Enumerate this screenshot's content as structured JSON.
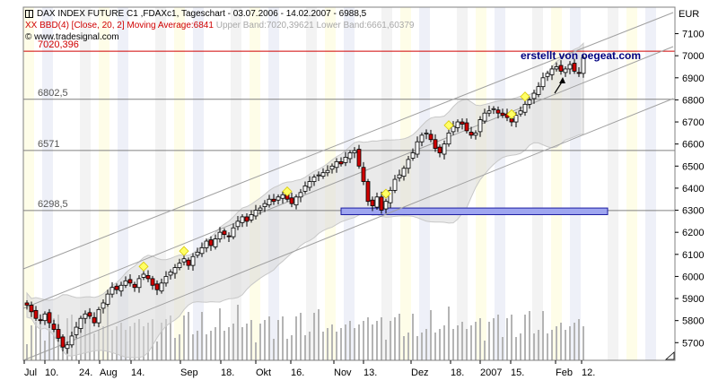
{
  "header": {
    "line1": "DAX INDEX FUTURE C1 ,FDAXc1, Tageschart - 03.07.2006 - 14.02.2007 - 6988,5",
    "line2_indicator": "XX BBD(4) [Close, 20, 2] Moving Average:6841",
    "line2_bands": "Upper Band:7020,39621 Lower Band:6661,60379",
    "line3": "© www.tradesignal.com"
  },
  "credit": "erstellt von oegeat.com",
  "currency": "EUR",
  "colors": {
    "up": "#ffffff",
    "down": "#d00000",
    "candle_outline": "#000000",
    "band_fill": "#d8d8d8",
    "channel_line": "#a0a0a0",
    "resistance_line": "#d00000",
    "support_box": "#9fa6f0",
    "support_box_border": "#1a1aa0",
    "volume": "#b4b4b4",
    "marker": "#ffff66"
  },
  "chart_data": {
    "type": "candlestick",
    "title": "DAX INDEX FUTURE C1 ,FDAXc1, Tageschart - 03.07.2006 - 14.02.2007 - 6988,5",
    "ylim": [
      5620,
      7220
    ],
    "y_ticks": [
      5700,
      5800,
      5900,
      6000,
      6100,
      6200,
      6300,
      6400,
      6500,
      6600,
      6700,
      6800,
      6900,
      7000,
      7100
    ],
    "x_tick_labels": [
      "Jul",
      "10.",
      "24.",
      "Aug",
      "14.",
      "Sep",
      "18.",
      "Okt",
      "16.",
      "Nov",
      "13.",
      "Dez",
      "18.",
      "2007",
      "15.",
      "Feb",
      "12."
    ],
    "levels": [
      {
        "label": "7020,396",
        "value": 7020.396
      },
      {
        "label": "6802,5",
        "value": 6802.5
      },
      {
        "label": "6571",
        "value": 6571
      },
      {
        "label": "6298,5",
        "value": 6298.5
      }
    ],
    "support_zone": [
      6280,
      6310
    ],
    "closes": [
      5870,
      5840,
      5810,
      5800,
      5830,
      5790,
      5760,
      5720,
      5680,
      5690,
      5730,
      5770,
      5810,
      5830,
      5820,
      5790,
      5850,
      5880,
      5920,
      5950,
      5940,
      5960,
      5980,
      5970,
      5950,
      5990,
      6010,
      5990,
      5960,
      5940,
      5970,
      6000,
      6020,
      6040,
      6060,
      6080,
      6050,
      6090,
      6110,
      6130,
      6160,
      6140,
      6170,
      6200,
      6190,
      6180,
      6220,
      6250,
      6270,
      6250,
      6280,
      6300,
      6310,
      6330,
      6350,
      6340,
      6360,
      6370,
      6350,
      6330,
      6360,
      6380,
      6410,
      6430,
      6450,
      6460,
      6470,
      6480,
      6500,
      6520,
      6510,
      6540,
      6560,
      6570,
      6500,
      6430,
      6340,
      6320,
      6360,
      6300,
      6340,
      6390,
      6440,
      6460,
      6490,
      6530,
      6560,
      6610,
      6640,
      6650,
      6620,
      6580,
      6560,
      6600,
      6650,
      6680,
      6700,
      6690,
      6660,
      6640,
      6650,
      6710,
      6740,
      6750,
      6760,
      6740,
      6730,
      6720,
      6700,
      6730,
      6750,
      6780,
      6800,
      6830,
      6860,
      6900,
      6920,
      6940,
      6950,
      6930,
      6940,
      6960,
      6930,
      6920,
      6990
    ]
  }
}
